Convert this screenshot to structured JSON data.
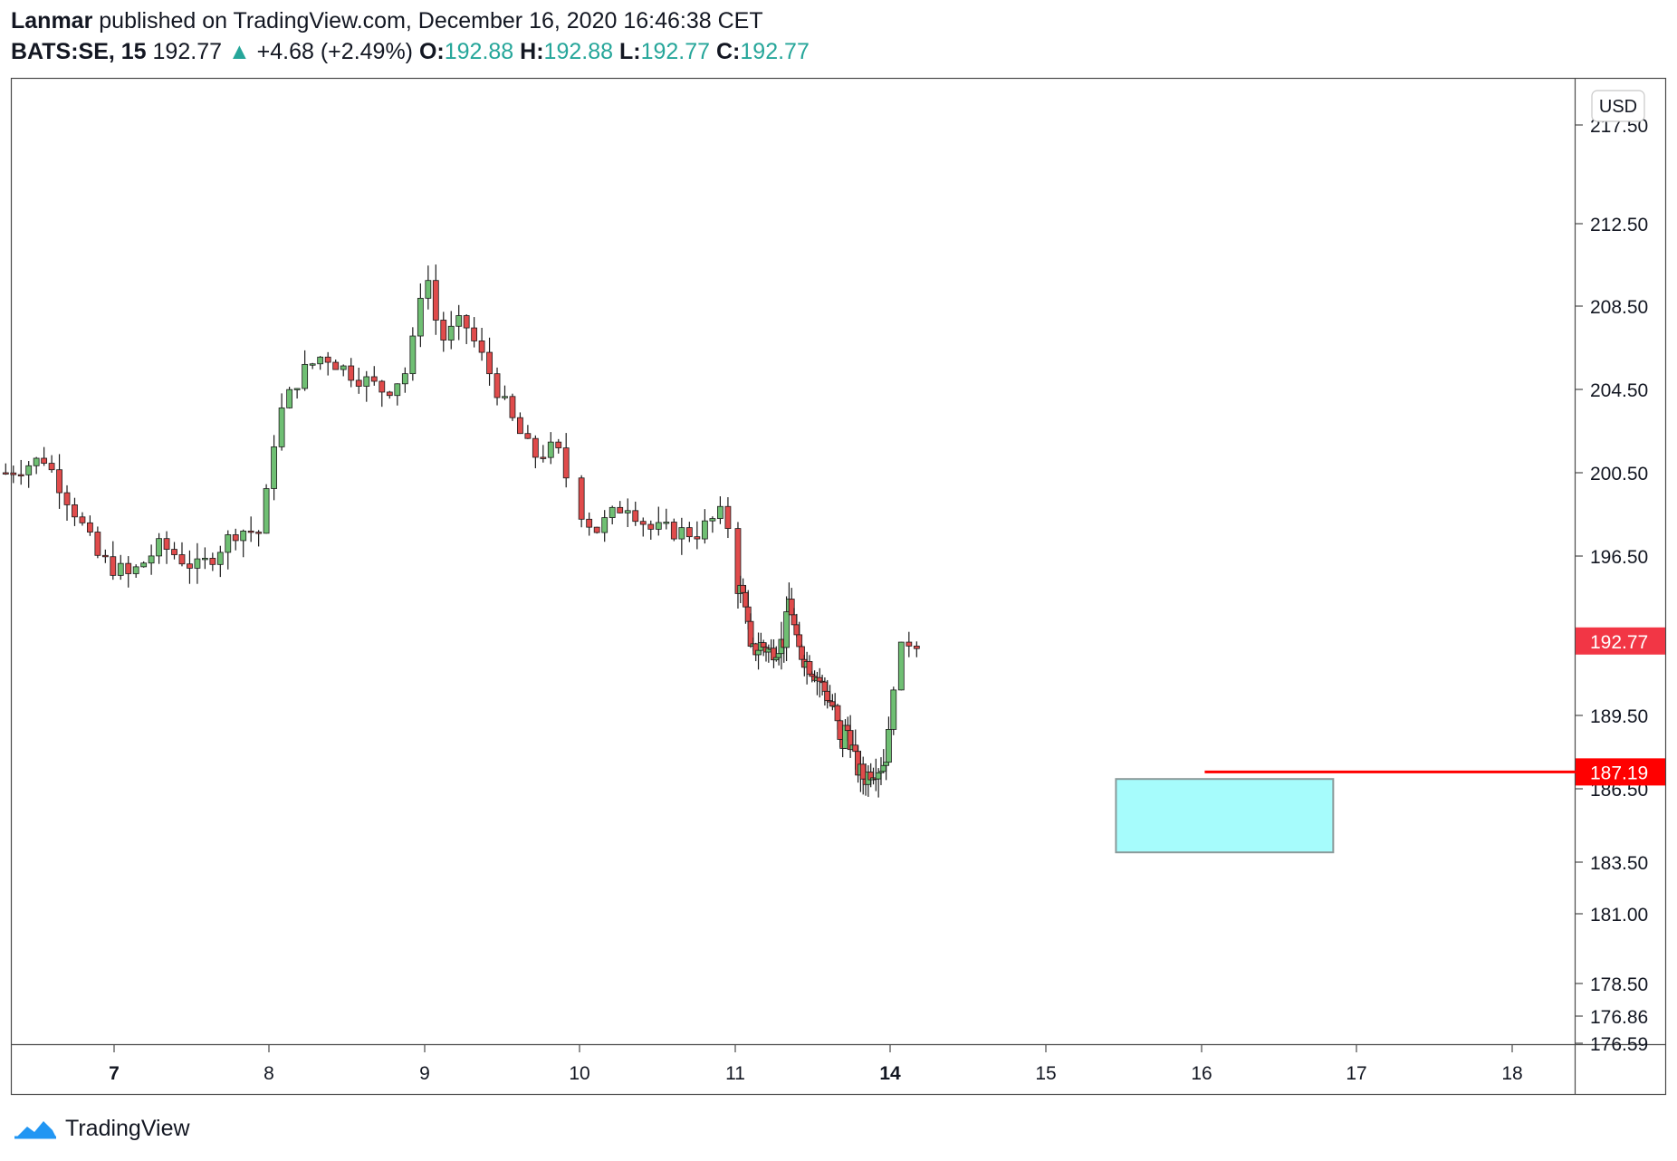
{
  "header": {
    "author": "Lanmar",
    "published_text": "published on TradingView.com, December 16, 2020 16:46:38 CET",
    "symbol": "BATS:SE, 15",
    "last": "192.77",
    "change": "+4.68 (+2.49%)",
    "o_label": "O:",
    "o_value": "192.88",
    "h_label": "H:",
    "h_value": "192.88",
    "l_label": "L:",
    "l_value": "192.77",
    "c_label": "C:",
    "c_value": "192.77"
  },
  "footer": {
    "brand": "TradingView"
  },
  "colors": {
    "up": "#26a69a",
    "candle_up": "#6fbf73",
    "candle_down": "#e04b4b",
    "price_tag": "#f23645",
    "support": "#ff0000",
    "zone": "#a6fcfc"
  },
  "chart_data": {
    "type": "candlestick",
    "currency": "USD",
    "y_ticks": [
      "217.50",
      "212.50",
      "208.50",
      "204.50",
      "200.50",
      "196.50",
      "189.50",
      "186.50",
      "183.50",
      "181.00",
      "178.50",
      "176.86",
      "176.59"
    ],
    "x_ticks": [
      "7",
      "8",
      "9",
      "10",
      "11",
      "14",
      "15",
      "16",
      "17",
      "18"
    ],
    "last_price": "192.77",
    "support_level": "187.19",
    "zone": {
      "from_day": 15.45,
      "to_day": 16.85,
      "top": 186.9,
      "bottom": 183.9
    },
    "ohlc_path": [
      [
        6.3,
        200.5
      ],
      [
        6.55,
        201.2
      ],
      [
        6.75,
        198.6
      ],
      [
        6.9,
        196.4
      ],
      [
        7.1,
        195.6
      ],
      [
        7.3,
        197.0
      ],
      [
        7.55,
        195.9
      ],
      [
        7.8,
        197.8
      ],
      [
        7.95,
        197.6
      ],
      [
        8.05,
        203.0
      ],
      [
        8.2,
        205.2
      ],
      [
        8.35,
        206.2
      ],
      [
        8.5,
        205.4
      ],
      [
        8.75,
        204.4
      ],
      [
        8.9,
        205.5
      ],
      [
        9.0,
        210.6
      ],
      [
        9.1,
        206.8
      ],
      [
        9.25,
        207.8
      ],
      [
        9.4,
        205.6
      ],
      [
        9.55,
        203.2
      ],
      [
        9.7,
        201.3
      ],
      [
        9.85,
        201.7
      ],
      [
        9.97,
        199.1
      ],
      [
        10.1,
        197.7
      ],
      [
        10.3,
        199.1
      ],
      [
        10.45,
        197.8
      ],
      [
        10.6,
        197.7
      ],
      [
        10.75,
        197.6
      ],
      [
        10.9,
        198.5
      ],
      [
        10.97,
        197.8
      ],
      [
        11.05,
        195.2
      ],
      [
        11.2,
        194.6
      ],
      [
        11.3,
        192.2
      ],
      [
        11.5,
        192.6
      ],
      [
        11.7,
        192.3
      ],
      [
        11.95,
        192.8
      ],
      [
        12.05,
        194.7
      ],
      [
        12.2,
        192.5
      ],
      [
        12.4,
        191.8
      ],
      [
        12.6,
        191.2
      ],
      [
        12.8,
        190.3
      ],
      [
        12.95,
        189.6
      ],
      [
        13.05,
        188.0
      ],
      [
        13.15,
        189.1
      ],
      [
        13.25,
        188.4
      ],
      [
        13.35,
        187.4
      ],
      [
        13.5,
        186.9
      ],
      [
        13.65,
        187.3
      ],
      [
        13.8,
        187.4
      ],
      [
        13.9,
        187.6
      ],
      [
        13.98,
        188.7
      ],
      [
        14.03,
        191.5
      ],
      [
        14.1,
        192.8
      ],
      [
        14.2,
        192.77
      ]
    ]
  }
}
